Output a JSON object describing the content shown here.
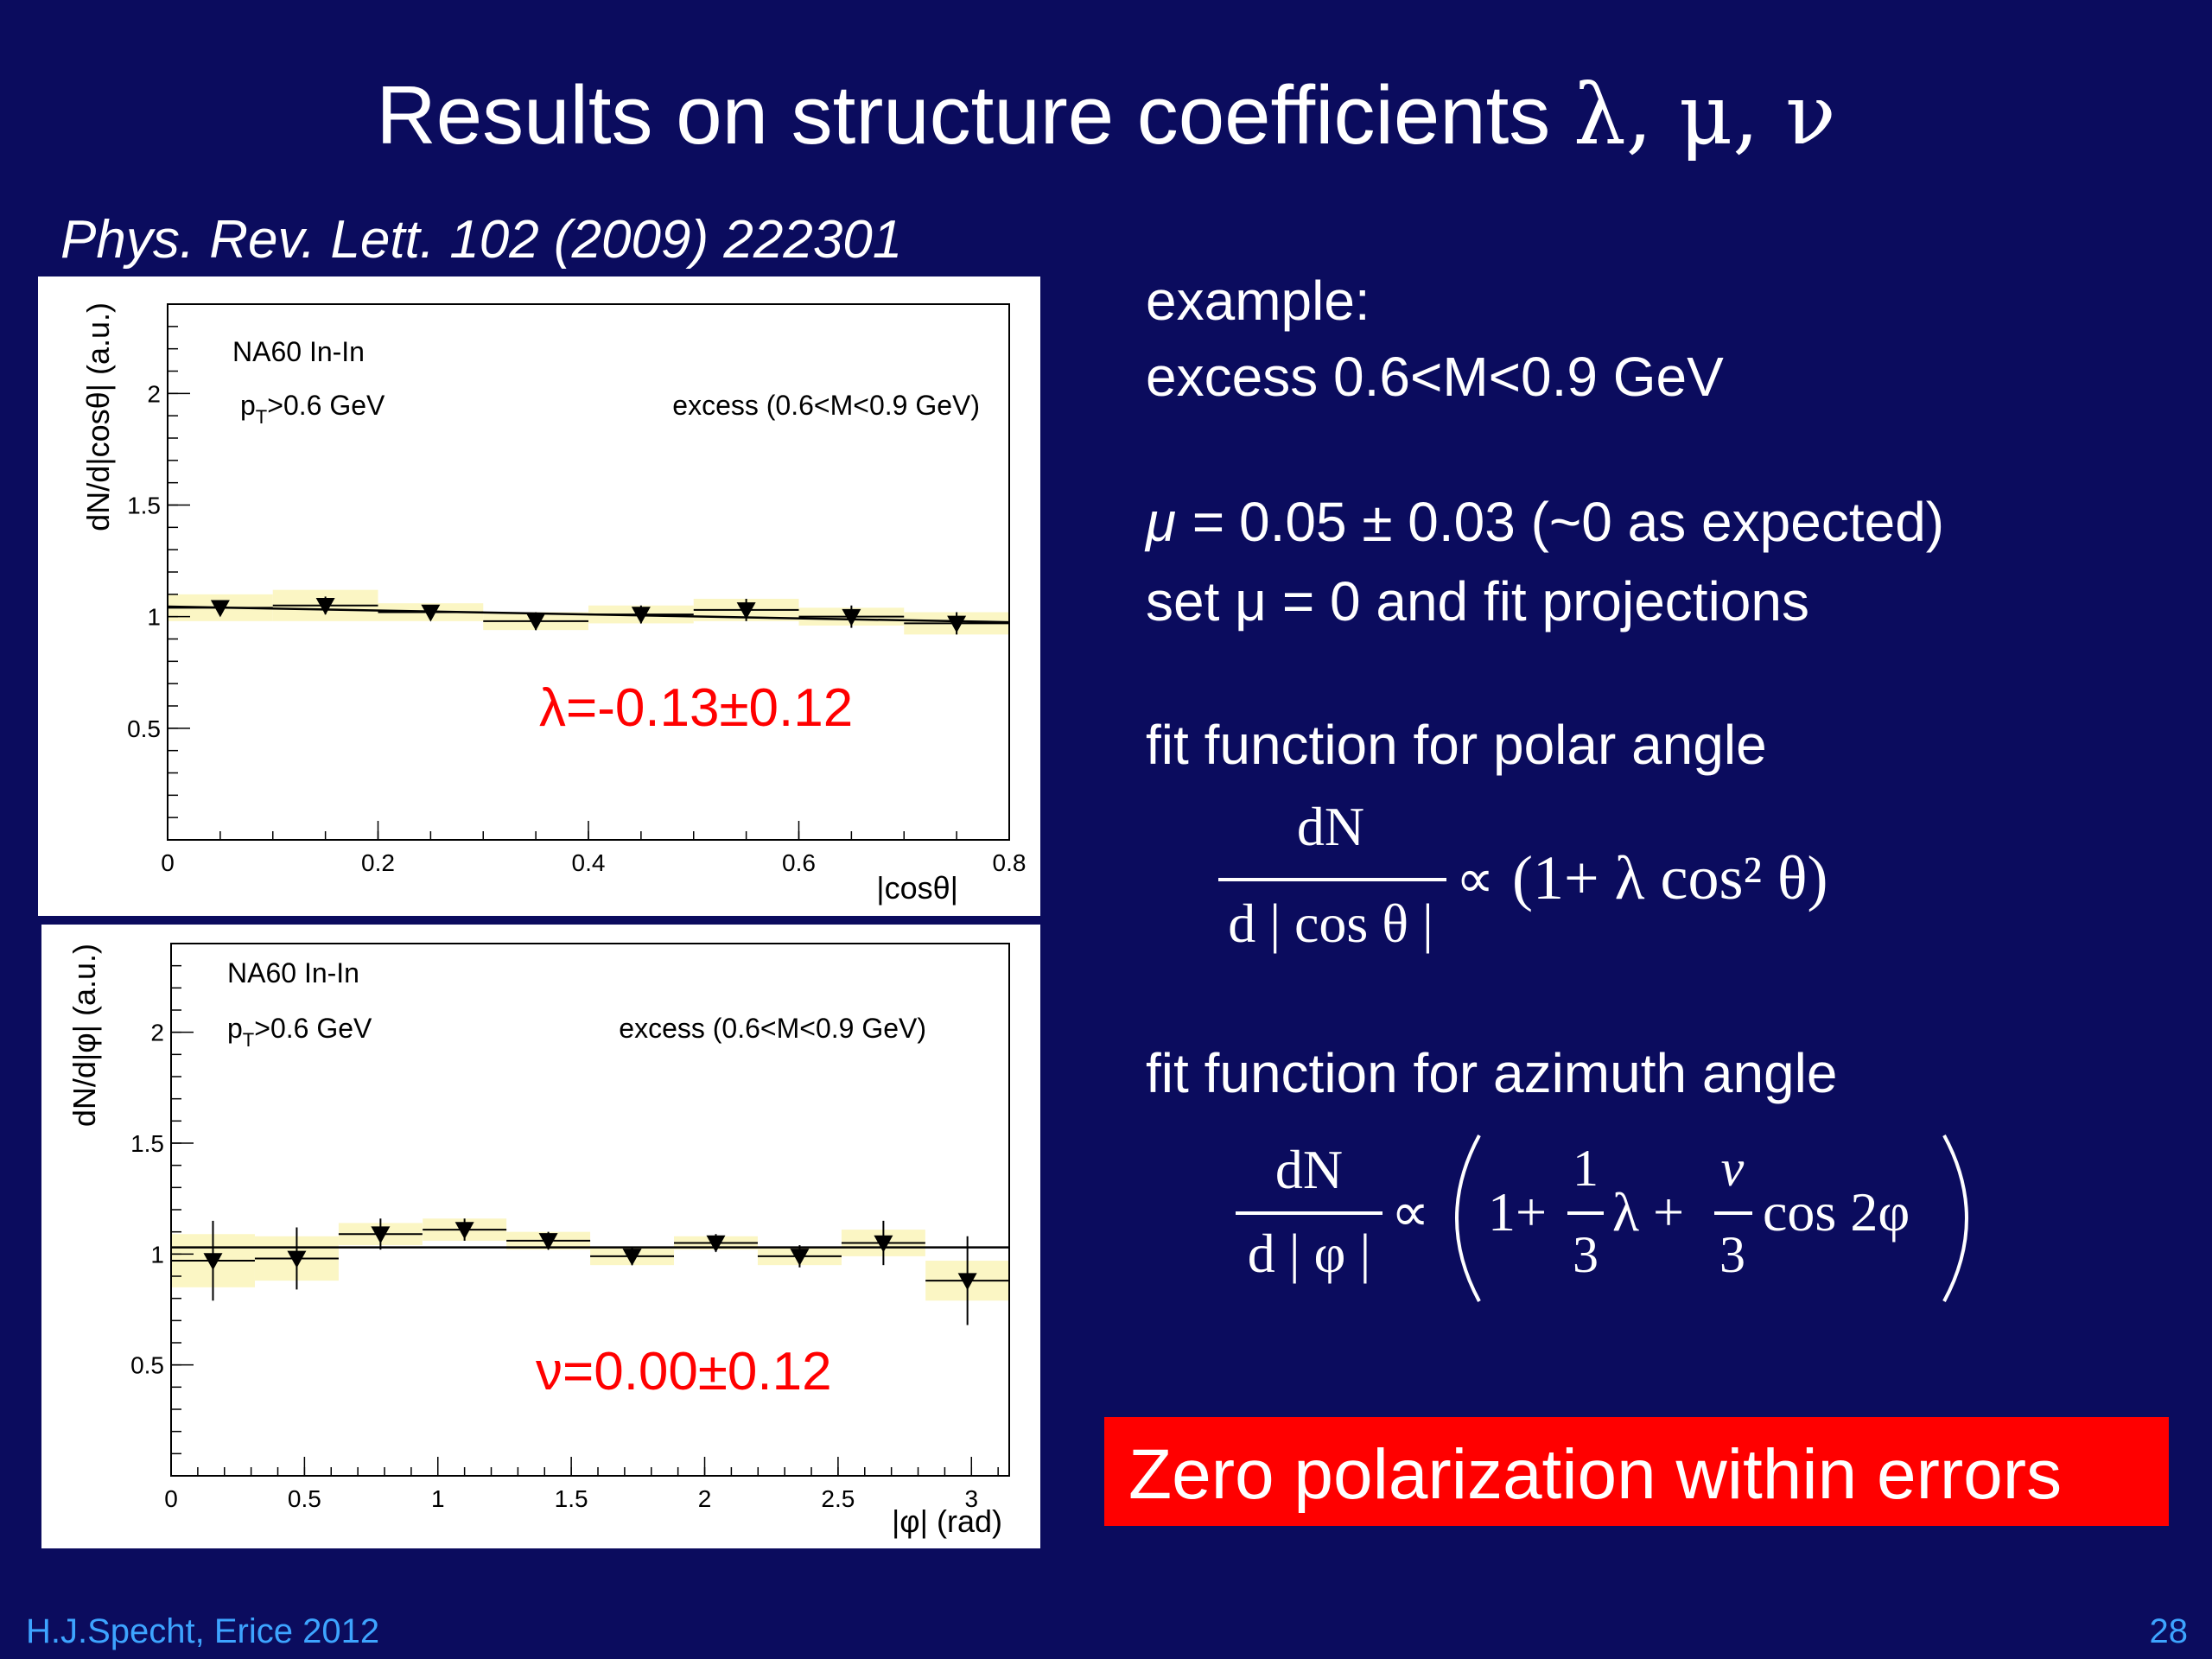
{
  "slide": {
    "title_text": "Results on structure coefficients ",
    "title_greek": "λ, μ, ν",
    "reference": "Phys. Rev. Lett. 102 (2009) 222301",
    "example_label": "example:",
    "example_range": "excess  0.6<M<0.9 GeV",
    "mu_label": "μ = ",
    "mu_value": "  0.05 ± 0.03 (~0 as expected)",
    "set_mu": "set μ = 0  and fit projections",
    "polar_heading": "fit function for polar angle",
    "azimuth_heading": "fit function for azimuth angle",
    "formula_polar": {
      "numerator": "dN",
      "denominator": "d | cos θ |",
      "prop": "∝",
      "body": "(1+ λ cos² θ)"
    },
    "formula_azimuth": {
      "numerator": "dN",
      "denominator": "d | φ |",
      "prop": "∝",
      "one_plus": "1+",
      "frac1_num": "1",
      "frac1_den": "3",
      "lambda_plus": "λ +",
      "frac2_num": "ν",
      "frac2_den": "3",
      "cos_term": "cos 2φ"
    },
    "conclusion": "Zero polarization within errors",
    "footer_left": "H.J.Specht, Erice 2012",
    "footer_right": "28",
    "colors": {
      "background": "#0b0c5e",
      "result_red": "#ff0000",
      "syst_band": "#fbf6c4",
      "footer": "#3da4ff"
    }
  },
  "chart_data": [
    {
      "type": "scatter",
      "ylabel": "dN/d|cosθ| (a.u.)",
      "xlabel": "|cosθ|",
      "xlim": [
        0,
        0.8
      ],
      "ylim": [
        0,
        2.4
      ],
      "xticks": [
        0,
        0.2,
        0.4,
        0.6,
        0.8
      ],
      "xtick_labels": [
        "0",
        "0.2",
        "0.4",
        "0.6",
        "0.8"
      ],
      "yticks": [
        0.5,
        1,
        1.5,
        2
      ],
      "ytick_labels": [
        "0.5",
        "1",
        "1.5",
        "2"
      ],
      "annotations": [
        "NA60 In-In",
        "excess (0.6<M<0.9 GeV)"
      ],
      "pt_cut": {
        "base": "p",
        "sub": "T",
        "rest": ">0.6 GeV"
      },
      "result": "λ=-0.13±0.12",
      "x": [
        0.05,
        0.15,
        0.25,
        0.35,
        0.45,
        0.55,
        0.65,
        0.75
      ],
      "y": [
        1.04,
        1.05,
        1.02,
        0.98,
        1.01,
        1.03,
        1.0,
        0.97
      ],
      "yerr": [
        0.03,
        0.04,
        0.03,
        0.04,
        0.04,
        0.05,
        0.05,
        0.05
      ],
      "xerr": [
        0.05,
        0.05,
        0.05,
        0.05,
        0.05,
        0.05,
        0.05,
        0.05
      ],
      "syst": [
        0.06,
        0.07,
        0.04,
        0.04,
        0.04,
        0.05,
        0.04,
        0.05
      ],
      "fit": {
        "x": [
          0,
          0.8
        ],
        "y": [
          1.045,
          0.975
        ]
      }
    },
    {
      "type": "scatter",
      "ylabel": "dN/d|φ| (a.u.)",
      "xlabel": "|φ| (rad)",
      "xlim": [
        0,
        3.14159
      ],
      "ylim": [
        0,
        2.4
      ],
      "xticks": [
        0,
        0.5,
        1,
        1.5,
        2,
        2.5,
        3
      ],
      "xtick_labels": [
        "0",
        "0.5",
        "1",
        "1.5",
        "2",
        "2.5",
        "3"
      ],
      "yticks": [
        0.5,
        1,
        1.5,
        2
      ],
      "ytick_labels": [
        "0.5",
        "1",
        "1.5",
        "2"
      ],
      "annotations": [
        "NA60 In-In",
        "excess (0.6<M<0.9 GeV)"
      ],
      "pt_cut": {
        "base": "p",
        "sub": "T",
        "rest": ">0.6 GeV"
      },
      "result": "ν=0.00±0.12",
      "x": [
        0.157,
        0.471,
        0.785,
        1.1,
        1.414,
        1.728,
        2.042,
        2.356,
        2.67,
        2.985
      ],
      "y": [
        0.97,
        0.98,
        1.09,
        1.11,
        1.06,
        0.99,
        1.05,
        0.99,
        1.05,
        0.88
      ],
      "yerr": [
        0.18,
        0.14,
        0.07,
        0.05,
        0.04,
        0.04,
        0.04,
        0.05,
        0.1,
        0.2
      ],
      "xerr": [
        0.157,
        0.157,
        0.157,
        0.157,
        0.157,
        0.157,
        0.157,
        0.157,
        0.157,
        0.157
      ],
      "syst": [
        0.12,
        0.1,
        0.05,
        0.05,
        0.04,
        0.04,
        0.03,
        0.04,
        0.06,
        0.09
      ],
      "fit": {
        "x": [
          0,
          3.14159
        ],
        "y": [
          1.03,
          1.03
        ]
      }
    }
  ]
}
